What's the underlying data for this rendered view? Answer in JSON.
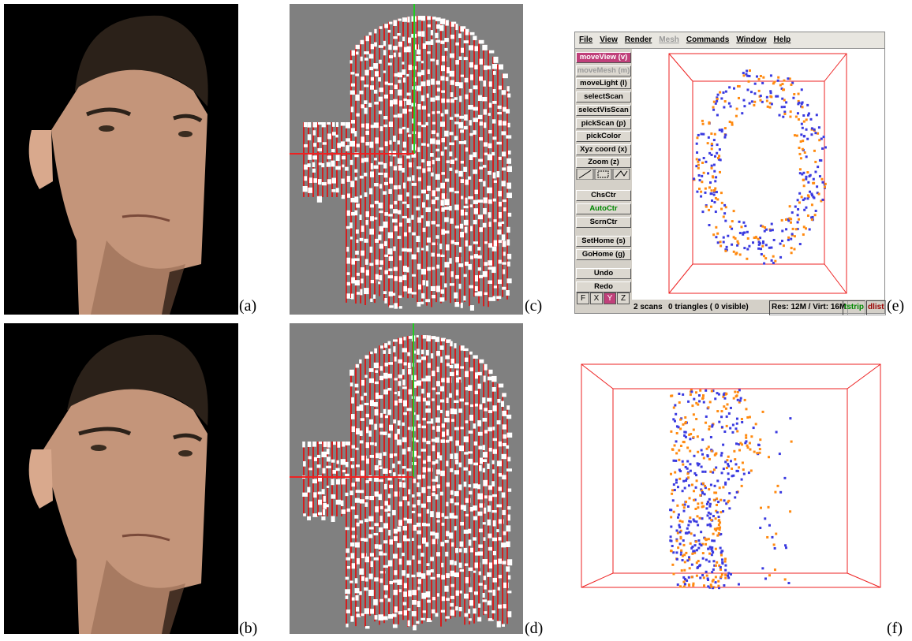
{
  "panels": {
    "a": "(a)",
    "b": "(b)",
    "c": "(c)",
    "d": "(d)",
    "e": "(e)",
    "f": "(f)"
  },
  "app": {
    "menu": [
      "File",
      "View",
      "Render",
      "Mesh",
      "Commands",
      "Window",
      "Help"
    ],
    "buttons": [
      "moveView (v)",
      "moveMesh (m)",
      "moveLight (l)",
      "selectScan",
      "selectVisScan",
      "pickScan (p)",
      "pickColor",
      "Xyz coord (x)",
      "Zoom (z)",
      "ChsCtr",
      "AutoCtr",
      "ScrnCtr",
      "SetHome (s)",
      "GoHome (g)",
      "Undo",
      "Redo"
    ],
    "axis_buttons": [
      "F",
      "X",
      "Y",
      "Z"
    ],
    "status": {
      "scans": "2 scans",
      "triangles": "0 triangles ( 0  visible)",
      "memory": "Res: 12M / Virt: 16M",
      "tstrip": "tstrip",
      "dlist": "dlist"
    }
  }
}
